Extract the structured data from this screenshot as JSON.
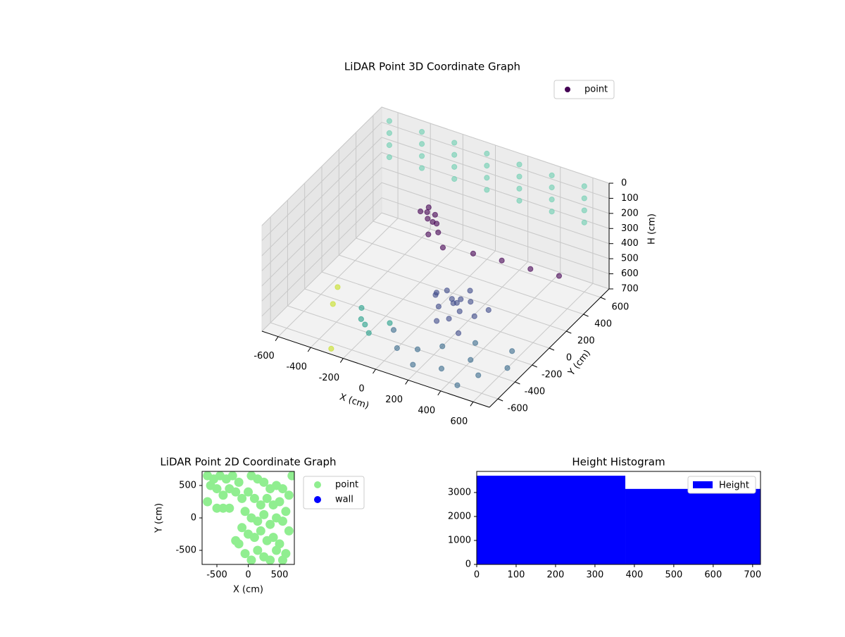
{
  "chart_data": [
    {
      "type": "scatter3d",
      "title": "LiDAR Point 3D Coordinate Graph",
      "xlabel": "X (cm)",
      "ylabel": "Y (cm)",
      "zlabel": "H (cm)",
      "xlim": [
        -700,
        700
      ],
      "ylim": [
        -700,
        700
      ],
      "zlim": [
        700,
        0
      ],
      "xticks": [
        -600,
        -400,
        -200,
        0,
        200,
        400,
        600
      ],
      "yticks": [
        -600,
        -400,
        -200,
        0,
        200,
        400,
        600
      ],
      "zticks": [
        0,
        100,
        200,
        300,
        400,
        500,
        600,
        700
      ],
      "grid": true,
      "legend": "upper right",
      "alpha": 0.6,
      "series": [
        {
          "name": "point",
          "color": "#440154",
          "x": [
            -600,
            -600,
            -600,
            -600,
            -400,
            -400,
            -400,
            -400,
            -200,
            -200,
            -200,
            -200,
            0,
            0,
            0,
            0,
            200,
            200,
            200,
            200,
            400,
            400,
            400,
            400,
            600,
            600,
            600,
            600,
            -200,
            -150,
            -180,
            -220,
            -130,
            -170,
            -110,
            -240,
            -160,
            -60,
            100,
            250,
            400,
            550,
            60,
            120,
            80,
            150,
            40,
            180,
            100,
            0,
            200,
            130,
            -20,
            250,
            70,
            160,
            300,
            220,
            100,
            200,
            300,
            0,
            400,
            -100,
            500,
            350,
            150,
            450,
            600,
            550,
            -300,
            -200,
            -350,
            -250,
            -150,
            -500,
            -300,
            -550
          ],
          "y": [
            600,
            600,
            600,
            600,
            600,
            600,
            600,
            600,
            600,
            600,
            600,
            600,
            600,
            600,
            600,
            600,
            600,
            600,
            600,
            600,
            600,
            600,
            600,
            600,
            600,
            600,
            600,
            600,
            300,
            280,
            250,
            320,
            260,
            290,
            240,
            280,
            220,
            200,
            250,
            300,
            350,
            400,
            20,
            -20,
            40,
            10,
            -40,
            -60,
            60,
            0,
            30,
            -90,
            50,
            -20,
            -120,
            100,
            50,
            -150,
            -400,
            -300,
            -500,
            -450,
            -350,
            -300,
            -450,
            -200,
            -550,
            -600,
            -300,
            -150,
            -300,
            -400,
            -200,
            -350,
            -250,
            -250,
            -650,
            -100
          ],
          "z": [
            0,
            80,
            160,
            240,
            0,
            80,
            160,
            240,
            0,
            80,
            160,
            240,
            0,
            80,
            160,
            240,
            0,
            80,
            160,
            240,
            0,
            80,
            160,
            240,
            0,
            80,
            160,
            240,
            260,
            280,
            300,
            310,
            320,
            340,
            360,
            290,
            380,
            420,
            430,
            450,
            480,
            500,
            560,
            600,
            620,
            580,
            640,
            610,
            650,
            600,
            590,
            660,
            620,
            640,
            680,
            570,
            620,
            690,
            700,
            700,
            700,
            700,
            690,
            700,
            700,
            680,
            700,
            700,
            700,
            690,
            700,
            700,
            700,
            690,
            700,
            700,
            700,
            690
          ],
          "colors": [
            "#6ccfb0",
            "#6ccfb0",
            "#6ccfb0",
            "#6ccfb0",
            "#6ccfb0",
            "#6ccfb0",
            "#6ccfb0",
            "#6ccfb0",
            "#6ccfb0",
            "#6ccfb0",
            "#6ccfb0",
            "#6ccfb0",
            "#6ccfb0",
            "#6ccfb0",
            "#6ccfb0",
            "#6ccfb0",
            "#6ccfb0",
            "#6ccfb0",
            "#6ccfb0",
            "#6ccfb0",
            "#6ccfb0",
            "#6ccfb0",
            "#6ccfb0",
            "#6ccfb0",
            "#6ccfb0",
            "#6ccfb0",
            "#6ccfb0",
            "#6ccfb0",
            "#440154",
            "#440154",
            "#440154",
            "#440154",
            "#440154",
            "#440154",
            "#440154",
            "#440154",
            "#440154",
            "#440154",
            "#440154",
            "#440154",
            "#440154",
            "#440154",
            "#3e4a89",
            "#3e4a89",
            "#3e4a89",
            "#3e4a89",
            "#3e4a89",
            "#3e4a89",
            "#3e4a89",
            "#3e4a89",
            "#3e4a89",
            "#3e4a89",
            "#3e4a89",
            "#3e4a89",
            "#3e4a89",
            "#3e4a89",
            "#3e4a89",
            "#3e4a89",
            "#3b6a8c",
            "#3b6a8c",
            "#3b6a8c",
            "#3b6a8c",
            "#3b6a8c",
            "#3b6a8c",
            "#3b6a8c",
            "#3b6a8c",
            "#3b6a8c",
            "#3b6a8c",
            "#3b6a8c",
            "#3b6a8c",
            "#27a08a",
            "#27a08a",
            "#27a08a",
            "#27a08a",
            "#27a08a",
            "#c6e021",
            "#c6e021",
            "#c6e021"
          ]
        }
      ]
    },
    {
      "type": "scatter",
      "title": "LiDAR Point 2D Coordinate Graph",
      "xlabel": "X (cm)",
      "ylabel": "Y (cm)",
      "xlim": [
        -736,
        736
      ],
      "ylim": [
        -717,
        717
      ],
      "xticks": [
        -500,
        0,
        500
      ],
      "yticks": [
        -500,
        0,
        500
      ],
      "legend": "outside right",
      "series": [
        {
          "name": "point",
          "color": "#90ee90",
          "x": [
            -650,
            -550,
            -450,
            -350,
            -250,
            -150,
            -600,
            -500,
            -400,
            -300,
            -200,
            -100,
            -650,
            -500,
            -400,
            -300,
            50,
            150,
            250,
            350,
            450,
            550,
            650,
            0,
            100,
            200,
            300,
            400,
            500,
            600,
            -50,
            50,
            150,
            250,
            350,
            450,
            550,
            650,
            -100,
            0,
            100,
            200,
            300,
            400,
            500,
            600,
            -150,
            -50,
            50,
            150,
            250,
            350,
            450,
            550,
            -200,
            700
          ],
          "y": [
            650,
            600,
            650,
            600,
            650,
            550,
            500,
            450,
            350,
            450,
            400,
            300,
            250,
            150,
            150,
            150,
            650,
            600,
            550,
            450,
            500,
            450,
            350,
            400,
            300,
            200,
            300,
            200,
            250,
            100,
            100,
            0,
            -50,
            50,
            -100,
            0,
            -50,
            -200,
            -150,
            -250,
            -300,
            -200,
            -350,
            -300,
            -400,
            -550,
            -400,
            -550,
            -650,
            -500,
            -600,
            -650,
            -500,
            -650,
            -350,
            650
          ]
        },
        {
          "name": "wall",
          "color": "#0000ff",
          "x": [],
          "y": []
        }
      ]
    },
    {
      "type": "histogram",
      "title": "Height Histogram",
      "xlim": [
        0,
        720
      ],
      "ylim": [
        0,
        3880
      ],
      "xticks": [
        0,
        100,
        200,
        300,
        400,
        500,
        600,
        700
      ],
      "yticks": [
        0,
        1000,
        2000,
        3000
      ],
      "legend": "upper right",
      "series": [
        {
          "name": "Height",
          "color": "#0000ff",
          "bins": [
            0,
            377,
            720
          ],
          "counts": [
            3700,
            3150
          ]
        }
      ]
    }
  ]
}
